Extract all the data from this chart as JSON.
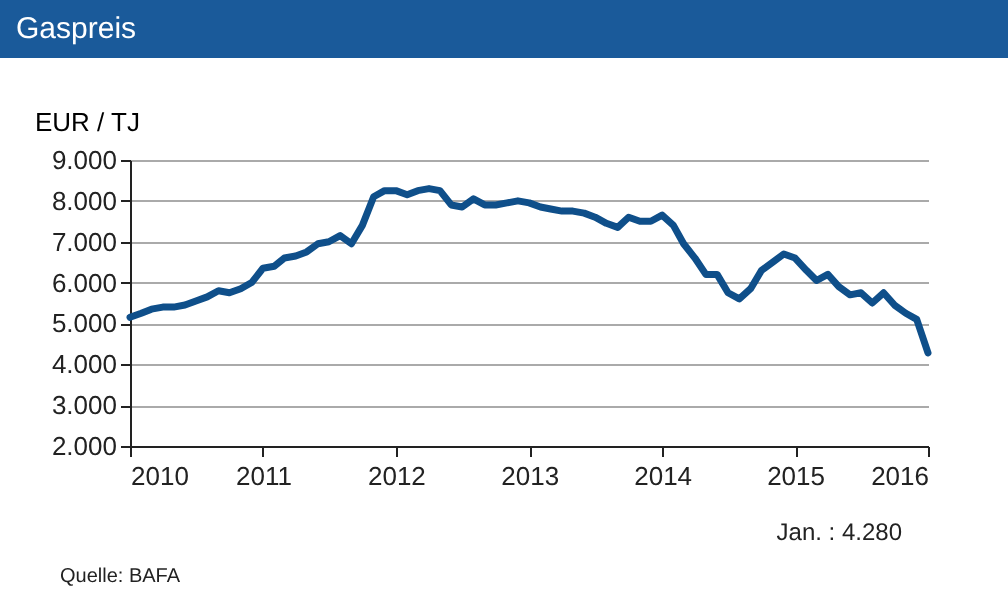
{
  "chart_data": {
    "type": "line",
    "title": "Gaspreis",
    "ylabel": "EUR / TJ",
    "x": [
      "2010-01",
      "2010-02",
      "2010-03",
      "2010-04",
      "2010-05",
      "2010-06",
      "2010-07",
      "2010-08",
      "2010-09",
      "2010-10",
      "2010-11",
      "2010-12",
      "2011-01",
      "2011-02",
      "2011-03",
      "2011-04",
      "2011-05",
      "2011-06",
      "2011-07",
      "2011-08",
      "2011-09",
      "2011-10",
      "2011-11",
      "2011-12",
      "2012-01",
      "2012-02",
      "2012-03",
      "2012-04",
      "2012-05",
      "2012-06",
      "2012-07",
      "2012-08",
      "2012-09",
      "2012-10",
      "2012-11",
      "2012-12",
      "2013-01",
      "2013-02",
      "2013-03",
      "2013-04",
      "2013-05",
      "2013-06",
      "2013-07",
      "2013-08",
      "2013-09",
      "2013-10",
      "2013-11",
      "2013-12",
      "2014-01",
      "2014-02",
      "2014-03",
      "2014-04",
      "2014-05",
      "2014-06",
      "2014-07",
      "2014-08",
      "2014-09",
      "2014-10",
      "2014-11",
      "2014-12",
      "2015-01",
      "2015-02",
      "2015-03",
      "2015-04",
      "2015-05",
      "2015-06",
      "2015-07",
      "2015-08",
      "2015-09",
      "2015-10",
      "2015-11",
      "2015-12",
      "2016-01"
    ],
    "series": [
      {
        "color": "#0f4f8a",
        "values": [
          5150,
          5250,
          5350,
          5400,
          5400,
          5450,
          5550,
          5650,
          5800,
          5750,
          5850,
          6000,
          6350,
          6400,
          6600,
          6650,
          6750,
          6950,
          7000,
          7150,
          6950,
          7400,
          8100,
          8250,
          8250,
          8150,
          8250,
          8300,
          8250,
          7900,
          7850,
          8050,
          7900,
          7900,
          7950,
          8000,
          7950,
          7850,
          7800,
          7750,
          7750,
          7700,
          7600,
          7450,
          7350,
          7600,
          7500,
          7500,
          7650,
          7400,
          6950,
          6600,
          6200,
          6200,
          5750,
          5600,
          5850,
          6300,
          6500,
          6700,
          6600,
          6300,
          6050,
          6200,
          5900,
          5700,
          5750,
          5500,
          5750,
          5450,
          5250,
          5100,
          4280
        ]
      }
    ],
    "xlim": [
      "2010-01",
      "2016-01"
    ],
    "xticks": [
      "2010",
      "2011",
      "2012",
      "2013",
      "2014",
      "2015",
      "2016"
    ],
    "ylim": [
      2000,
      9000
    ],
    "yticks": [
      {
        "value": 2000,
        "label": "2.000"
      },
      {
        "value": 3000,
        "label": "3.000"
      },
      {
        "value": 4000,
        "label": "4.000"
      },
      {
        "value": 5000,
        "label": "5.000"
      },
      {
        "value": 6000,
        "label": "6.000"
      },
      {
        "value": 7000,
        "label": "7.000"
      },
      {
        "value": 8000,
        "label": "8.000"
      },
      {
        "value": 9000,
        "label": "9.000"
      }
    ],
    "grid": "y",
    "marker": "none",
    "line_style": "solid",
    "annotations": [
      "Jan. :   4.280",
      "Quelle: BAFA"
    ]
  }
}
